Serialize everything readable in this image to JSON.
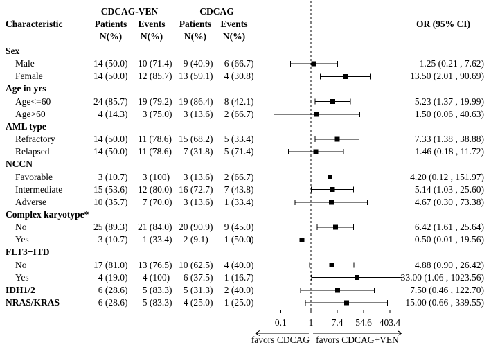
{
  "colors": {
    "ink": "#000000",
    "background": "#ffffff"
  },
  "chart_data": {
    "type": "scatter",
    "header": {
      "characteristic": "Characteristic",
      "groups": [
        {
          "name": "CDCAG-VEN",
          "patients": "Patients",
          "events": "Events",
          "patients_unit": "N(%)",
          "events_unit": "N(%)"
        },
        {
          "name": "CDCAG",
          "patients": "Patients",
          "events": "Events",
          "patients_unit": "N(%)",
          "events_unit": "N(%)"
        }
      ],
      "or_label": "OR (95% CI)"
    },
    "rows": [
      {
        "label": "Sex",
        "bold": true
      },
      {
        "label": "Male",
        "bold": false,
        "ven_patients": "14 (50.0)",
        "ven_events": "10 (71.4)",
        "ctrl_patients": "9 (40.9)",
        "ctrl_events": "6 (66.7)",
        "or_ci": "1.25 (0.21 , 7.62)",
        "or": 1.25,
        "lower": 0.21,
        "upper": 7.62
      },
      {
        "label": "Female",
        "bold": false,
        "ven_patients": "14 (50.0)",
        "ven_events": "12 (85.7)",
        "ctrl_patients": "13 (59.1)",
        "ctrl_events": "4 (30.8)",
        "or_ci": "13.50 (2.01 , 90.69)",
        "or": 13.5,
        "lower": 2.01,
        "upper": 90.69
      },
      {
        "label": "Age in yrs",
        "bold": true
      },
      {
        "label": "Age<=60",
        "bold": false,
        "ven_patients": "24 (85.7)",
        "ven_events": "19 (79.2)",
        "ctrl_patients": "19 (86.4)",
        "ctrl_events": "8 (42.1)",
        "or_ci": "5.23 (1.37 , 19.99)",
        "or": 5.23,
        "lower": 1.37,
        "upper": 19.99
      },
      {
        "label": "Age>60",
        "bold": false,
        "ven_patients": "4 (14.3)",
        "ven_events": "3 (75.0)",
        "ctrl_patients": "3 (13.6)",
        "ctrl_events": "2 (66.7)",
        "or_ci": "1.50 (0.06 , 40.63)",
        "or": 1.5,
        "lower": 0.06,
        "upper": 40.63
      },
      {
        "label": "AML type",
        "bold": true
      },
      {
        "label": "Refractory",
        "bold": false,
        "ven_patients": "14 (50.0)",
        "ven_events": "11 (78.6)",
        "ctrl_patients": "15 (68.2)",
        "ctrl_events": "5 (33.4)",
        "or_ci": "7.33 (1.38 , 38.88)",
        "or": 7.33,
        "lower": 1.38,
        "upper": 38.88
      },
      {
        "label": "Relapsed",
        "bold": false,
        "ven_patients": "14 (50.0)",
        "ven_events": "11 (78.6)",
        "ctrl_patients": "7 (31.8)",
        "ctrl_events": "5 (71.4)",
        "or_ci": "1.46 (0.18 , 11.72)",
        "or": 1.46,
        "lower": 0.18,
        "upper": 11.72
      },
      {
        "label": "NCCN",
        "bold": true
      },
      {
        "label": "Favorable",
        "bold": false,
        "ven_patients": "3 (10.7)",
        "ven_events": "3 (100)",
        "ctrl_patients": "3 (13.6)",
        "ctrl_events": "2 (66.7)",
        "or_ci": "4.20 (0.12 , 151.97)",
        "or": 4.2,
        "lower": 0.12,
        "upper": 151.97
      },
      {
        "label": "Intermediate",
        "bold": false,
        "ven_patients": "15 (53.6)",
        "ven_events": "12 (80.0)",
        "ctrl_patients": "16 (72.7)",
        "ctrl_events": "7 (43.8)",
        "or_ci": "5.14 (1.03 , 25.60)",
        "or": 5.14,
        "lower": 1.03,
        "upper": 25.6
      },
      {
        "label": "Adverse",
        "bold": false,
        "ven_patients": "10 (35.7)",
        "ven_events": "7 (70.0)",
        "ctrl_patients": "3 (13.6)",
        "ctrl_events": "1 (33.4)",
        "or_ci": "4.67 (0.30 , 73.38)",
        "or": 4.67,
        "lower": 0.3,
        "upper": 73.38
      },
      {
        "label": "Complex karyotype*",
        "bold": true
      },
      {
        "label": "No",
        "bold": false,
        "ven_patients": "25 (89.3)",
        "ven_events": "21 (84.0)",
        "ctrl_patients": "20 (90.9)",
        "ctrl_events": "9 (45.0)",
        "or_ci": "6.42 (1.61 , 25.64)",
        "or": 6.42,
        "lower": 1.61,
        "upper": 25.64
      },
      {
        "label": "Yes",
        "bold": false,
        "ven_patients": "3 (10.7)",
        "ven_events": "1 (33.4)",
        "ctrl_patients": "2 (9.1)",
        "ctrl_events": "1 (50.0)",
        "or_ci": "0.50 (0.01 , 19.56)",
        "or": 0.5,
        "lower": 0.01,
        "upper": 19.56
      },
      {
        "label": "FLT3−ITD",
        "bold": true
      },
      {
        "label": "No",
        "bold": false,
        "ven_patients": "17 (81.0)",
        "ven_events": "13 (76.5)",
        "ctrl_patients": "10 (62.5)",
        "ctrl_events": "4 (40.0)",
        "or_ci": "4.88 (0.90 , 26.42)",
        "or": 4.88,
        "lower": 0.9,
        "upper": 26.42
      },
      {
        "label": "Yes",
        "bold": false,
        "ven_patients": "4 (19.0)",
        "ven_events": "4 (100)",
        "ctrl_patients": "6 (37.5)",
        "ctrl_events": "1 (16.7)",
        "or_ci": "33.00 (1.06 , 1023.56)",
        "or": 33.0,
        "lower": 1.06,
        "upper": 1023.56
      },
      {
        "label": "IDH1/2",
        "bold": true,
        "ven_patients": "6 (28.6)",
        "ven_events": "5 (83.3)",
        "ctrl_patients": "5 (31.3)",
        "ctrl_events": "2 (40.0)",
        "or_ci": "7.50 (0.46 , 122.70)",
        "or": 7.5,
        "lower": 0.46,
        "upper": 122.7
      },
      {
        "label": "NRAS/KRAS",
        "bold": true,
        "ven_patients": "6 (28.6)",
        "ven_events": "5 (83.3)",
        "ctrl_patients": "4 (25.0)",
        "ctrl_events": "1 (25.0)",
        "or_ci": "15.00 (0.66 , 339.55)",
        "or": 15.0,
        "lower": 0.66,
        "upper": 339.55
      }
    ],
    "x_axis": {
      "log_scale": true,
      "reference": 1,
      "ticks": [
        0.1,
        1,
        7.4,
        54.6,
        403.4
      ],
      "tick_labels": [
        "0.1",
        "1",
        "7.4",
        "54.6",
        "403.4"
      ]
    },
    "direction_labels": {
      "left": "favors CDCAG",
      "right": "favors CDCAG+VEN"
    }
  }
}
